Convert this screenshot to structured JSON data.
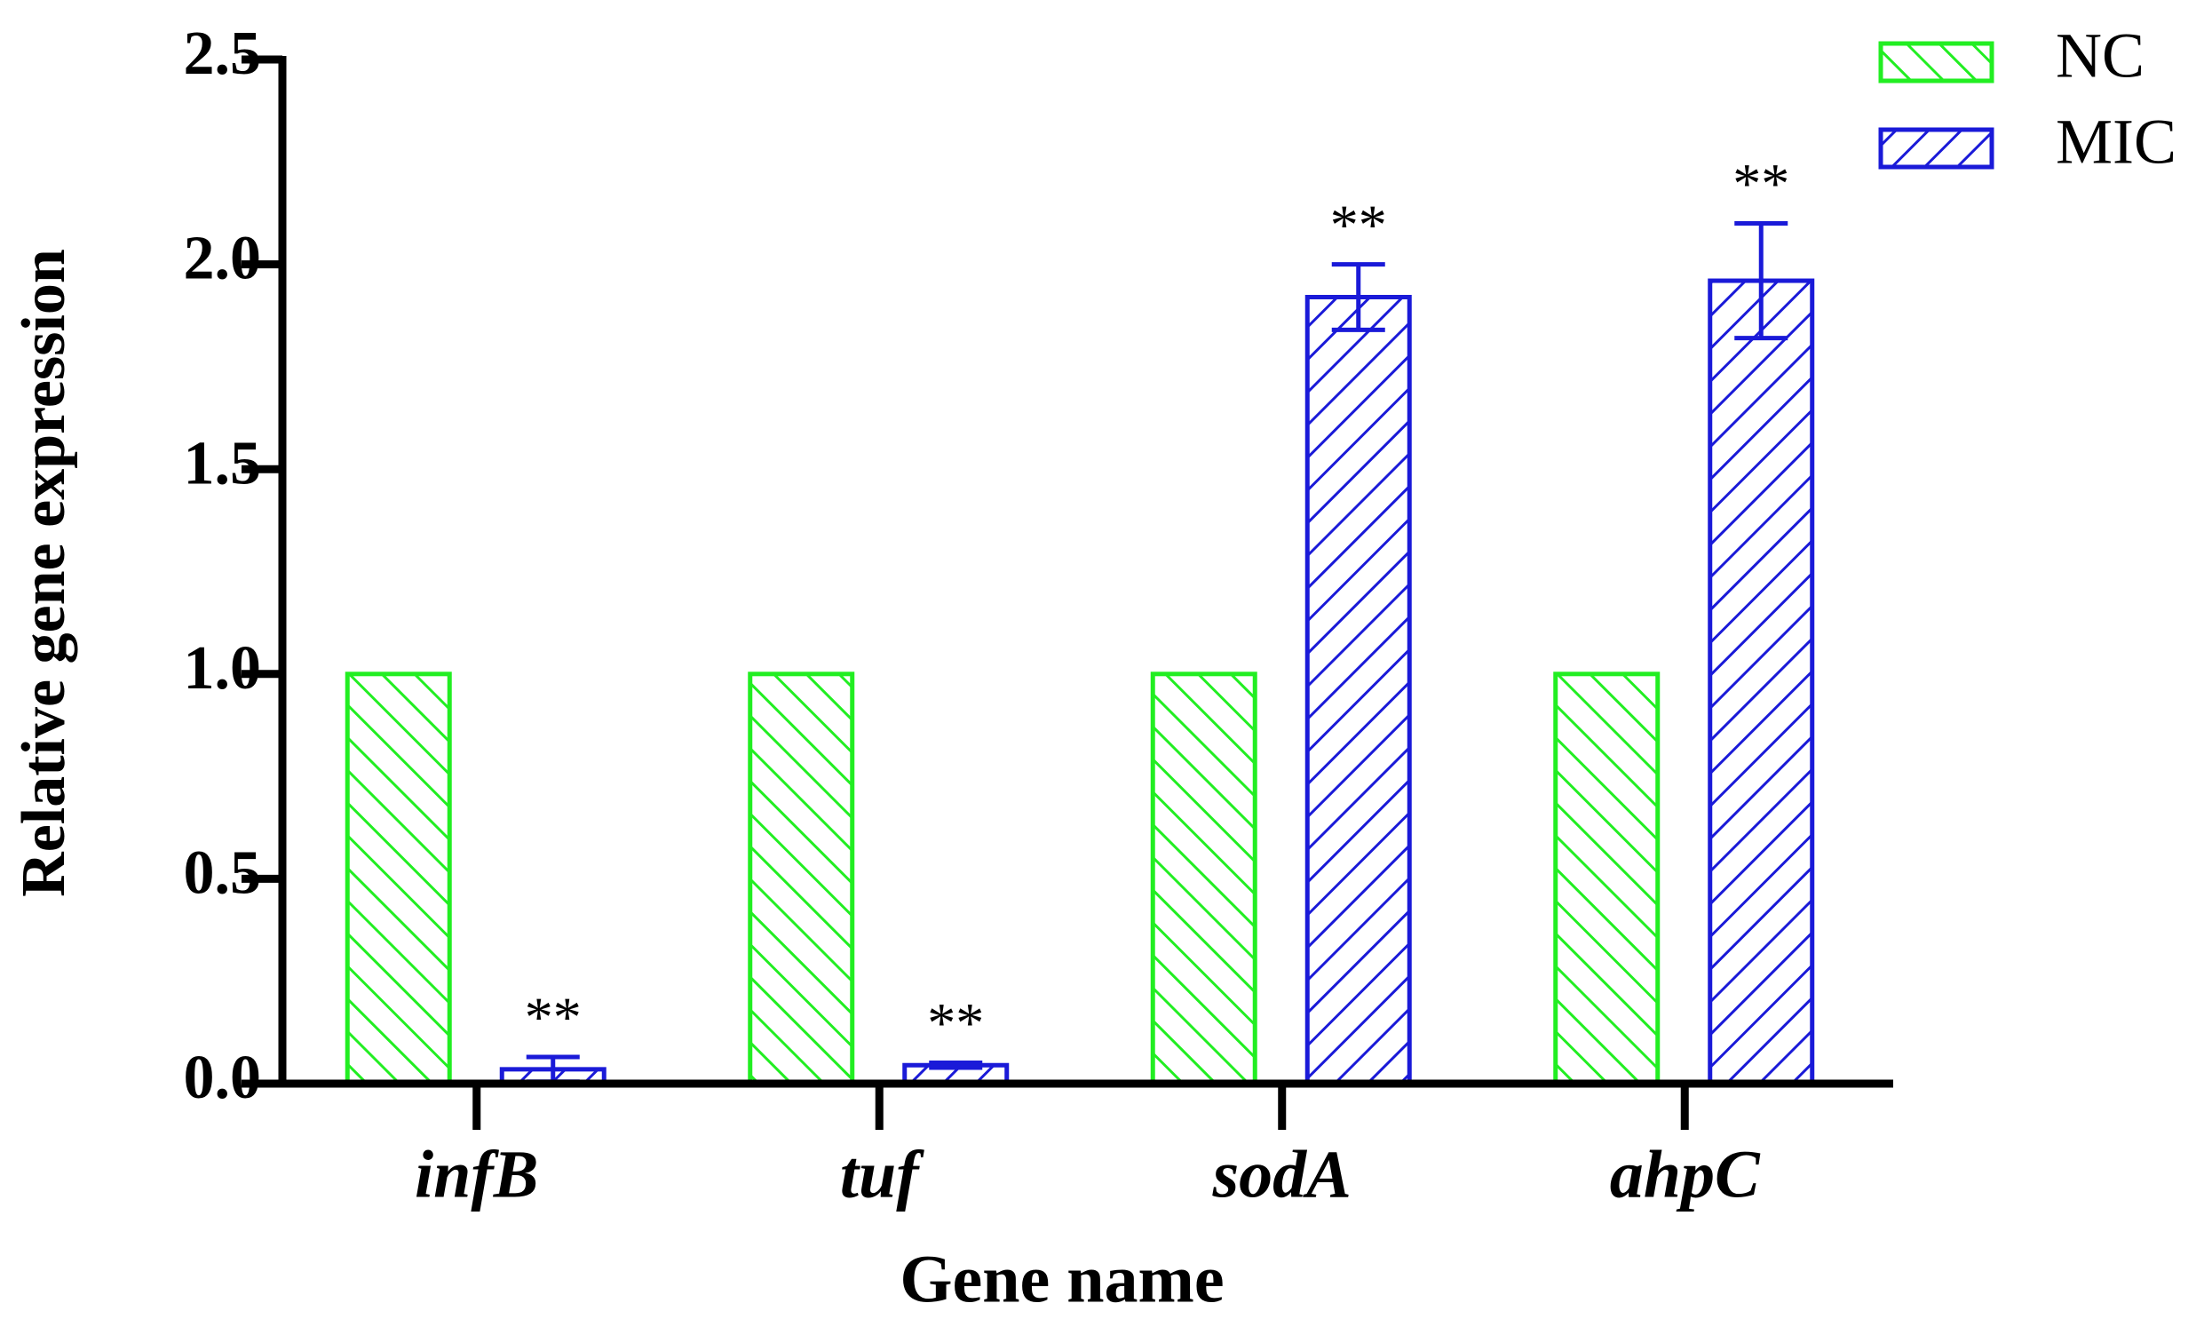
{
  "chart_data": {
    "type": "bar",
    "x_label": "Gene name",
    "y_label": "Relative gene expression",
    "categories": [
      "infB",
      "tuf",
      "sodA",
      "ahpC"
    ],
    "series": [
      {
        "name": "NC",
        "color": "#22ee22",
        "hatch": "\\",
        "values": [
          1,
          1,
          1,
          1
        ]
      },
      {
        "name": "MIC",
        "color": "#1a1ad8",
        "hatch": "/",
        "values": [
          0.035,
          0.045,
          1.92,
          1.96
        ],
        "errors": [
          0.03,
          0.006,
          0.08,
          0.14
        ],
        "annotations": [
          "**",
          "**",
          "**",
          "**"
        ]
      }
    ],
    "ylim": [
      0,
      2.5
    ],
    "yticks": [
      {
        "value": 0,
        "label": "0.0"
      },
      {
        "value": 0.5,
        "label": "0.5"
      },
      {
        "value": 1,
        "label": "1.0"
      },
      {
        "value": 1.5,
        "label": "1.5"
      },
      {
        "value": 2,
        "label": "2.0"
      },
      {
        "value": 2.5,
        "label": "2.5"
      }
    ],
    "legend": "upper right"
  }
}
